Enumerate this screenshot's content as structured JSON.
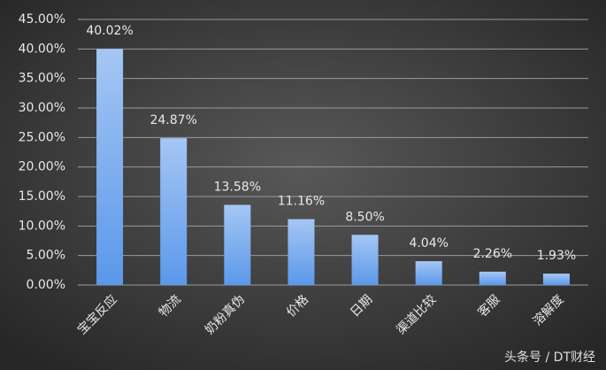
{
  "chart_data": {
    "type": "bar",
    "categories": [
      "宝宝反应",
      "物流",
      "奶粉真伪",
      "价格",
      "日期",
      "渠道比较",
      "客服",
      "溶解度"
    ],
    "values": [
      40.02,
      24.87,
      13.58,
      11.16,
      8.5,
      4.04,
      2.26,
      1.93
    ],
    "value_labels": [
      "40.02%",
      "24.87%",
      "13.58%",
      "11.16%",
      "8.50%",
      "4.04%",
      "2.26%",
      "1.93%"
    ],
    "color": "#5b98ea",
    "ylim": [
      0,
      45
    ],
    "yticks": [
      {
        "value": 0,
        "label": "0.00%"
      },
      {
        "value": 5,
        "label": "5.00%"
      },
      {
        "value": 10,
        "label": "10.00%"
      },
      {
        "value": 15,
        "label": "15.00%"
      },
      {
        "value": 20,
        "label": "20.00%"
      },
      {
        "value": 25,
        "label": "25.00%"
      },
      {
        "value": 30,
        "label": "30.00%"
      },
      {
        "value": 35,
        "label": "35.00%"
      },
      {
        "value": 40,
        "label": "40.00%"
      },
      {
        "value": 45,
        "label": "45.00%"
      }
    ],
    "grid": true,
    "watermark": "头条号 / DT财经"
  }
}
